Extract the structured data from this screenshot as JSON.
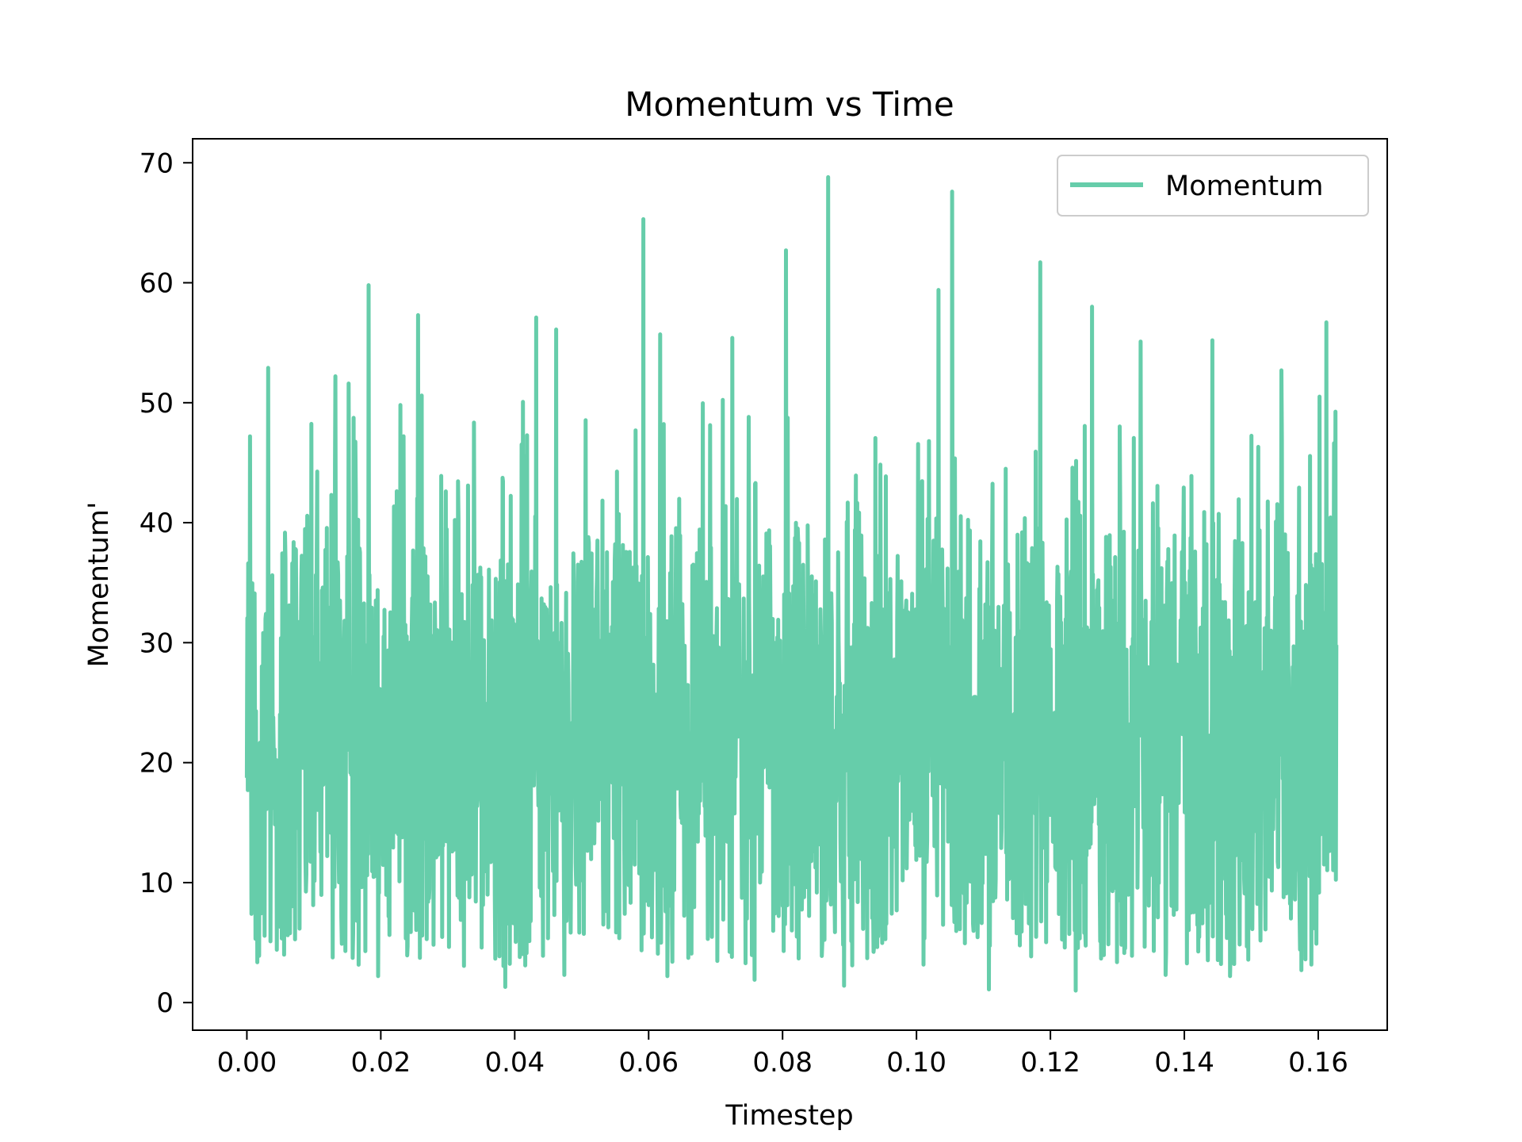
{
  "chart_data": {
    "type": "line",
    "title": "Momentum vs Time",
    "xlabel": "Timestep",
    "ylabel": "Momentum'",
    "xlim": [
      -0.0081,
      0.1703
    ],
    "ylim": [
      -2.3,
      72.0
    ],
    "xticks": [
      0.0,
      0.02,
      0.04,
      0.06,
      0.08,
      0.1,
      0.12,
      0.14,
      0.16
    ],
    "xtick_labels": [
      "0.00",
      "0.02",
      "0.04",
      "0.06",
      "0.08",
      "0.10",
      "0.12",
      "0.14",
      "0.16"
    ],
    "yticks": [
      0,
      10,
      20,
      30,
      40,
      50,
      60,
      70
    ],
    "ytick_labels": [
      "0",
      "10",
      "20",
      "30",
      "40",
      "50",
      "60",
      "70"
    ],
    "grid": false,
    "legend": {
      "position": "top-right",
      "entries": [
        "Momentum"
      ]
    },
    "series": [
      {
        "name": "Momentum",
        "color": "#66cdaa",
        "x_range": [
          0.0,
          0.1627
        ],
        "approx_mean": 22,
        "approx_range": [
          1,
          69
        ],
        "peaks": [
          [
            0.0005,
            47.2
          ],
          [
            0.0032,
            52.9
          ],
          [
            0.0132,
            52.2
          ],
          [
            0.0152,
            51.6
          ],
          [
            0.0182,
            59.8
          ],
          [
            0.0256,
            57.3
          ],
          [
            0.0386,
            52.5
          ],
          [
            0.0432,
            57.1
          ],
          [
            0.0462,
            56.1
          ],
          [
            0.0592,
            65.3
          ],
          [
            0.0617,
            55.7
          ],
          [
            0.0725,
            55.4
          ],
          [
            0.0805,
            62.7
          ],
          [
            0.0868,
            68.8
          ],
          [
            0.1033,
            59.4
          ],
          [
            0.1053,
            67.6
          ],
          [
            0.1185,
            61.7
          ],
          [
            0.1262,
            58.0
          ],
          [
            0.1335,
            55.1
          ],
          [
            0.1442,
            55.2
          ],
          [
            0.1545,
            52.7
          ],
          [
            0.1612,
            56.7
          ]
        ],
        "troughs": [
          [
            0.0018,
            3.9
          ],
          [
            0.0045,
            4.4
          ],
          [
            0.0196,
            2.2
          ],
          [
            0.0386,
            1.3
          ],
          [
            0.0442,
            3.9
          ],
          [
            0.0474,
            2.3
          ],
          [
            0.0628,
            2.2
          ],
          [
            0.0758,
            1.9
          ],
          [
            0.0892,
            1.4
          ],
          [
            0.1108,
            1.1
          ],
          [
            0.1238,
            1.0
          ],
          [
            0.1372,
            2.3
          ],
          [
            0.1468,
            2.2
          ],
          [
            0.1575,
            2.7
          ]
        ]
      }
    ]
  }
}
